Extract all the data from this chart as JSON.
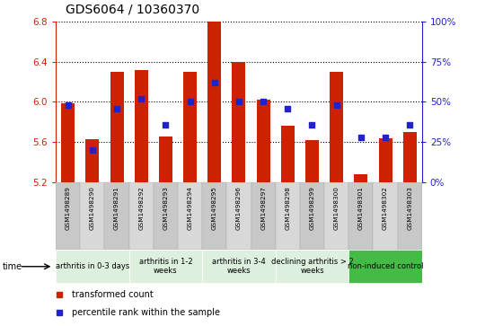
{
  "title": "GDS6064 / 10360370",
  "samples": [
    "GSM1498289",
    "GSM1498290",
    "GSM1498291",
    "GSM1498292",
    "GSM1498293",
    "GSM1498294",
    "GSM1498295",
    "GSM1498296",
    "GSM1498297",
    "GSM1498298",
    "GSM1498299",
    "GSM1498300",
    "GSM1498301",
    "GSM1498302",
    "GSM1498303"
  ],
  "bar_values": [
    5.99,
    5.63,
    6.3,
    6.32,
    5.66,
    6.3,
    6.8,
    6.4,
    6.02,
    5.76,
    5.62,
    6.3,
    5.28,
    5.64,
    5.7
  ],
  "dot_values": [
    48,
    20,
    46,
    52,
    36,
    50,
    62,
    50,
    50,
    46,
    36,
    48,
    28,
    28,
    36
  ],
  "ymin": 5.2,
  "ymax": 6.8,
  "yticks": [
    5.2,
    5.6,
    6.0,
    6.4,
    6.8
  ],
  "right_yticks": [
    0,
    25,
    50,
    75,
    100
  ],
  "bar_color": "#cc2200",
  "dot_color": "#2222cc",
  "bar_width": 0.55,
  "groups": [
    {
      "label": "arthritis in 0-3 days",
      "start": 0,
      "end": 3,
      "color": "#ddf0dd"
    },
    {
      "label": "arthritis in 1-2\nweeks",
      "start": 3,
      "end": 6,
      "color": "#ddf0dd"
    },
    {
      "label": "arthritis in 3-4\nweeks",
      "start": 6,
      "end": 9,
      "color": "#ddf0dd"
    },
    {
      "label": "declining arthritis > 2\nweeks",
      "start": 9,
      "end": 12,
      "color": "#ddf0dd"
    },
    {
      "label": "non-induced control",
      "start": 12,
      "end": 15,
      "color": "#44bb44"
    }
  ],
  "legend_red": "transformed count",
  "legend_blue": "percentile rank within the sample",
  "axis_color_left": "#cc2200",
  "axis_color_right": "#2222cc",
  "bg_color_odd": "#c8c8c8",
  "bg_color_even": "#d8d8d8"
}
